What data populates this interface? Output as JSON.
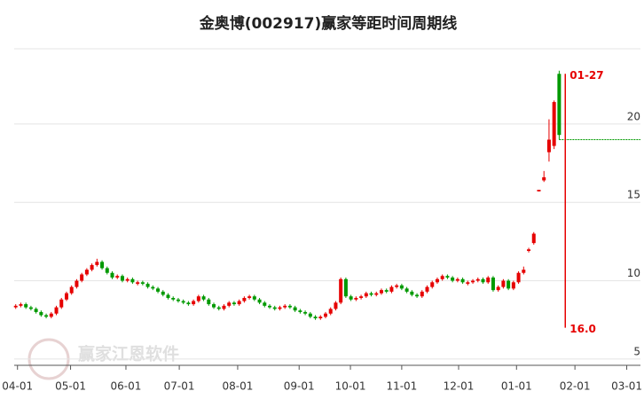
{
  "chart_data": {
    "type": "candlestick",
    "title": "金奥博(002917)赢家等距时间周期线",
    "watermark": "赢家江恩软件",
    "up_color": "#e60000",
    "down_color": "#009900",
    "xlim": [
      -0.3,
      123
    ],
    "ylim": [
      4.6,
      24.8
    ],
    "xticks": [
      {
        "value": 0.35,
        "label": "04-01"
      },
      {
        "value": 10.8,
        "label": "05-01"
      },
      {
        "value": 21.7,
        "label": "06-01"
      },
      {
        "value": 32.2,
        "label": "07-01"
      },
      {
        "value": 43.7,
        "label": "08-01"
      },
      {
        "value": 55.8,
        "label": "09-01"
      },
      {
        "value": 65.9,
        "label": "10-01"
      },
      {
        "value": 76.0,
        "label": "11-01"
      },
      {
        "value": 87.2,
        "label": "12-01"
      },
      {
        "value": 98.6,
        "label": "01-01"
      },
      {
        "value": 110.1,
        "label": "02-01"
      },
      {
        "value": 120.3,
        "label": "03-01"
      }
    ],
    "yticks": [
      5,
      10,
      15,
      20
    ],
    "grid": true,
    "period_line": {
      "x": 108.2,
      "top": 23.2,
      "bottom": 7.0,
      "top_label": "01-27",
      "bottom_label": "16.0",
      "color": "#e60000"
    },
    "level_line": {
      "value": 19.0,
      "color": "#009900"
    },
    "candles": [
      [
        8.3,
        8.5,
        8.2,
        8.4
      ],
      [
        8.4,
        8.6,
        8.3,
        8.5
      ],
      [
        8.5,
        8.6,
        8.2,
        8.3
      ],
      [
        8.3,
        8.4,
        8.1,
        8.2
      ],
      [
        8.2,
        8.3,
        7.9,
        8.0
      ],
      [
        8.0,
        8.1,
        7.7,
        7.8
      ],
      [
        7.8,
        7.9,
        7.6,
        7.7
      ],
      [
        7.7,
        8.0,
        7.6,
        7.9
      ],
      [
        7.9,
        8.4,
        7.8,
        8.3
      ],
      [
        8.3,
        8.9,
        8.2,
        8.8
      ],
      [
        8.8,
        9.3,
        8.7,
        9.2
      ],
      [
        9.2,
        9.7,
        9.1,
        9.6
      ],
      [
        9.6,
        10.1,
        9.5,
        10.0
      ],
      [
        10.0,
        10.5,
        9.9,
        10.4
      ],
      [
        10.4,
        10.8,
        10.3,
        10.7
      ],
      [
        10.7,
        11.1,
        10.6,
        11.0
      ],
      [
        11.0,
        11.4,
        10.9,
        11.2
      ],
      [
        11.2,
        11.3,
        10.7,
        10.8
      ],
      [
        10.8,
        10.9,
        10.4,
        10.5
      ],
      [
        10.5,
        10.6,
        10.1,
        10.2
      ],
      [
        10.2,
        10.4,
        10.1,
        10.3
      ],
      [
        10.3,
        10.4,
        9.9,
        10.0
      ],
      [
        10.0,
        10.2,
        9.9,
        10.1
      ],
      [
        10.1,
        10.2,
        9.8,
        9.9
      ],
      [
        9.8,
        10.0,
        9.7,
        9.9
      ],
      [
        9.9,
        10.0,
        9.7,
        9.8
      ],
      [
        9.8,
        9.9,
        9.5,
        9.6
      ],
      [
        9.6,
        9.7,
        9.4,
        9.5
      ],
      [
        9.5,
        9.6,
        9.2,
        9.3
      ],
      [
        9.3,
        9.4,
        9.0,
        9.1
      ],
      [
        9.1,
        9.2,
        8.8,
        8.9
      ],
      [
        8.9,
        9.0,
        8.7,
        8.8
      ],
      [
        8.8,
        8.9,
        8.6,
        8.7
      ],
      [
        8.7,
        8.8,
        8.5,
        8.6
      ],
      [
        8.6,
        8.7,
        8.4,
        8.5
      ],
      [
        8.5,
        8.8,
        8.4,
        8.7
      ],
      [
        8.7,
        9.1,
        8.6,
        9.0
      ],
      [
        9.0,
        9.1,
        8.7,
        8.8
      ],
      [
        8.8,
        8.9,
        8.4,
        8.5
      ],
      [
        8.5,
        8.6,
        8.2,
        8.3
      ],
      [
        8.3,
        8.4,
        8.1,
        8.2
      ],
      [
        8.2,
        8.5,
        8.1,
        8.4
      ],
      [
        8.4,
        8.7,
        8.3,
        8.6
      ],
      [
        8.6,
        8.7,
        8.4,
        8.5
      ],
      [
        8.5,
        8.8,
        8.4,
        8.7
      ],
      [
        8.7,
        9.0,
        8.6,
        8.9
      ],
      [
        8.9,
        9.1,
        8.8,
        9.0
      ],
      [
        9.0,
        9.1,
        8.7,
        8.8
      ],
      [
        8.8,
        8.9,
        8.5,
        8.6
      ],
      [
        8.6,
        8.7,
        8.3,
        8.4
      ],
      [
        8.4,
        8.5,
        8.2,
        8.3
      ],
      [
        8.3,
        8.4,
        8.1,
        8.2
      ],
      [
        8.2,
        8.4,
        8.1,
        8.3
      ],
      [
        8.3,
        8.5,
        8.2,
        8.4
      ],
      [
        8.4,
        8.5,
        8.2,
        8.3
      ],
      [
        8.3,
        8.4,
        8.0,
        8.1
      ],
      [
        8.1,
        8.2,
        7.9,
        8.0
      ],
      [
        8.0,
        8.1,
        7.8,
        7.9
      ],
      [
        7.9,
        8.0,
        7.6,
        7.7
      ],
      [
        7.7,
        7.8,
        7.5,
        7.6
      ],
      [
        7.6,
        7.8,
        7.5,
        7.7
      ],
      [
        7.7,
        8.0,
        7.6,
        7.9
      ],
      [
        7.9,
        8.3,
        7.8,
        8.2
      ],
      [
        8.2,
        8.7,
        8.1,
        8.6
      ],
      [
        8.6,
        10.2,
        8.5,
        10.1
      ],
      [
        10.1,
        10.2,
        8.9,
        9.0
      ],
      [
        9.0,
        9.1,
        8.7,
        8.8
      ],
      [
        8.8,
        9.0,
        8.7,
        8.9
      ],
      [
        8.9,
        9.1,
        8.8,
        9.0
      ],
      [
        9.0,
        9.3,
        8.9,
        9.2
      ],
      [
        9.2,
        9.3,
        9.0,
        9.1
      ],
      [
        9.1,
        9.3,
        9.0,
        9.2
      ],
      [
        9.2,
        9.5,
        9.1,
        9.4
      ],
      [
        9.4,
        9.5,
        9.2,
        9.3
      ],
      [
        9.3,
        9.7,
        9.2,
        9.6
      ],
      [
        9.6,
        9.8,
        9.5,
        9.7
      ],
      [
        9.7,
        9.8,
        9.4,
        9.5
      ],
      [
        9.5,
        9.6,
        9.2,
        9.3
      ],
      [
        9.3,
        9.4,
        9.0,
        9.1
      ],
      [
        9.1,
        9.2,
        8.9,
        9.0
      ],
      [
        9.0,
        9.4,
        8.9,
        9.3
      ],
      [
        9.3,
        9.7,
        9.2,
        9.6
      ],
      [
        9.6,
        10.0,
        9.5,
        9.9
      ],
      [
        9.9,
        10.2,
        9.8,
        10.1
      ],
      [
        10.1,
        10.4,
        10.0,
        10.3
      ],
      [
        10.3,
        10.4,
        10.1,
        10.2
      ],
      [
        10.2,
        10.3,
        9.9,
        10.0
      ],
      [
        10.0,
        10.2,
        9.9,
        10.1
      ],
      [
        10.1,
        10.2,
        9.8,
        9.9
      ],
      [
        9.8,
        10.0,
        9.7,
        9.9
      ],
      [
        9.9,
        10.1,
        9.8,
        10.0
      ],
      [
        10.0,
        10.2,
        9.9,
        10.1
      ],
      [
        10.1,
        10.2,
        9.8,
        9.9
      ],
      [
        9.9,
        10.3,
        9.8,
        10.2
      ],
      [
        10.2,
        10.3,
        9.3,
        9.4
      ],
      [
        9.4,
        9.7,
        9.3,
        9.6
      ],
      [
        9.6,
        10.1,
        9.5,
        10.0
      ],
      [
        10.0,
        10.1,
        9.4,
        9.5
      ],
      [
        9.5,
        10.0,
        9.4,
        9.9
      ],
      [
        9.9,
        10.6,
        9.8,
        10.5
      ],
      [
        10.5,
        10.9,
        10.4,
        10.7
      ],
      [
        11.9,
        12.1,
        11.8,
        12.0
      ],
      [
        12.4,
        13.1,
        12.3,
        13.0
      ],
      [
        15.7,
        15.8,
        15.7,
        15.8
      ],
      [
        16.4,
        17.0,
        16.3,
        16.6
      ],
      [
        18.2,
        20.3,
        17.6,
        19.0
      ],
      [
        18.6,
        21.5,
        18.4,
        21.4
      ],
      [
        23.2,
        23.4,
        19.0,
        19.3
      ]
    ]
  }
}
